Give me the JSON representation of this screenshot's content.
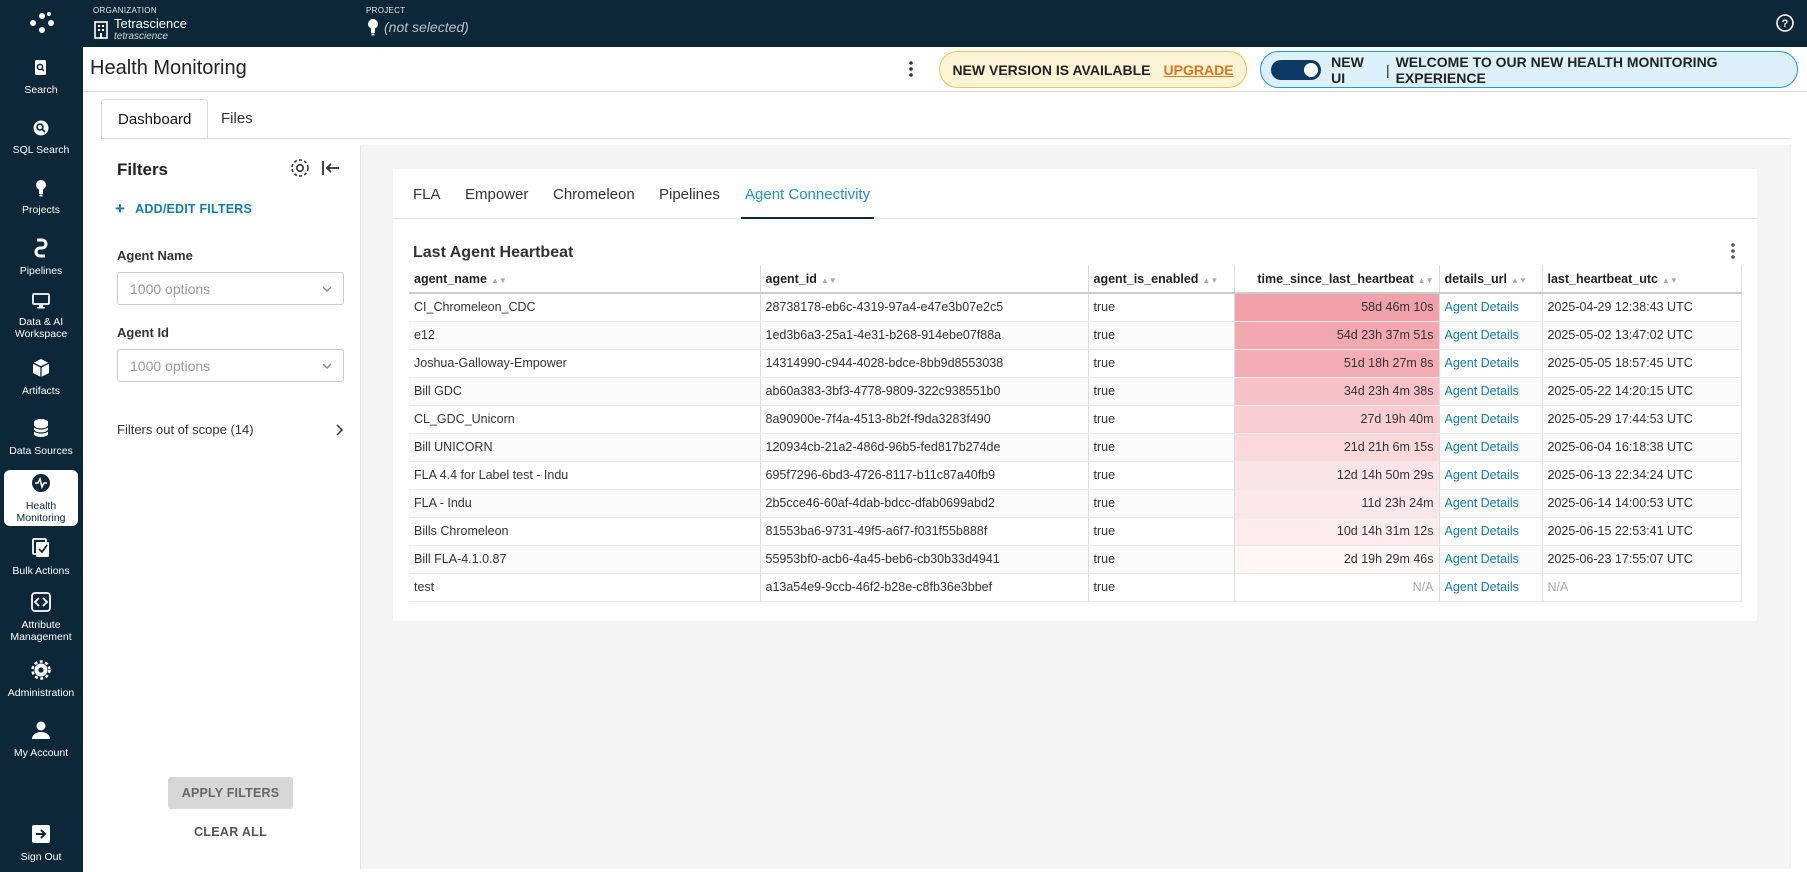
{
  "topbar": {
    "org_label": "ORGANIZATION",
    "org_name": "Tetrascience",
    "org_sub": "tetrascience",
    "project_label": "PROJECT",
    "project_value": "(not selected)"
  },
  "nav": {
    "items": [
      {
        "label": "Search",
        "icon": "search-file-icon"
      },
      {
        "label": "SQL Search",
        "icon": "magnifier-icon"
      },
      {
        "label": "Projects",
        "icon": "lightbulb-icon"
      },
      {
        "label": "Pipelines",
        "icon": "pipeline-icon"
      },
      {
        "label": "Data & AI Workspace",
        "icon": "monitor-icon"
      },
      {
        "label": "Artifacts",
        "icon": "cube-icon"
      },
      {
        "label": "Data Sources",
        "icon": "database-icon"
      },
      {
        "label": "Health Monitoring",
        "icon": "health-icon"
      },
      {
        "label": "Bulk Actions",
        "icon": "bulk-actions-icon"
      },
      {
        "label": "Attribute Management",
        "icon": "code-icon"
      },
      {
        "label": "Administration",
        "icon": "gear-icon"
      },
      {
        "label": "My Account",
        "icon": "person-icon"
      },
      {
        "label": "Sign Out",
        "icon": "sign-out-icon"
      }
    ]
  },
  "page": {
    "title": "Health Monitoring",
    "upgrade_text": "NEW VERSION IS AVAILABLE",
    "upgrade_link": "UPGRADE",
    "newui_label": "NEW UI",
    "newui_separator": "|",
    "newui_text": "WELCOME TO OUR NEW HEALTH MONITORING EXPERIENCE"
  },
  "main_tabs": [
    "Dashboard",
    "Files"
  ],
  "filters": {
    "title": "Filters",
    "add_label": "ADD/EDIT FILTERS",
    "agent_name_label": "Agent Name",
    "agent_name_placeholder": "1000 options",
    "agent_id_label": "Agent Id",
    "agent_id_placeholder": "1000 options",
    "out_of_scope": "Filters out of scope (14)",
    "apply": "APPLY FILTERS",
    "clear": "CLEAR ALL"
  },
  "sub_tabs": [
    "FLA",
    "Empower",
    "Chromeleon",
    "Pipelines",
    "Agent Connectivity"
  ],
  "active_sub_tab": "Agent Connectivity",
  "card_title": "Last Agent Heartbeat",
  "table": {
    "columns": [
      "agent_name",
      "agent_id",
      "agent_is_enabled",
      "time_since_last_heartbeat",
      "details_url",
      "last_heartbeat_utc"
    ],
    "rows": [
      [
        "CI_Chromeleon_CDC",
        "28738178-eb6c-4319-97a4-e47e3b07e2c5",
        "true",
        "58d 46m 10s",
        "Agent Details",
        "2025-04-29 12:38:43 UTC"
      ],
      [
        "e12",
        "1ed3b6a3-25a1-4e31-b268-914ebe07f88a",
        "true",
        "54d 23h 37m 51s",
        "Agent Details",
        "2025-05-02 13:47:02 UTC"
      ],
      [
        "Joshua-Galloway-Empower",
        "14314990-c944-4028-bdce-8bb9d8553038",
        "true",
        "51d 18h 27m 8s",
        "Agent Details",
        "2025-05-05 18:57:45 UTC"
      ],
      [
        "Bill GDC",
        "ab60a383-3bf3-4778-9809-322c938551b0",
        "true",
        "34d 23h 4m 38s",
        "Agent Details",
        "2025-05-22 14:20:15 UTC"
      ],
      [
        "CL_GDC_Unicorn",
        "8a90900e-7f4a-4513-8b2f-f9da3283f490",
        "true",
        "27d 19h 40m",
        "Agent Details",
        "2025-05-29 17:44:53 UTC"
      ],
      [
        "Bill UNICORN",
        "120934cb-21a2-486d-96b5-fed817b274de",
        "true",
        "21d 21h 6m 15s",
        "Agent Details",
        "2025-06-04 16:18:38 UTC"
      ],
      [
        "FLA 4.4 for Label test - Indu",
        "695f7296-6bd3-4726-8117-b11c87a40fb9",
        "true",
        "12d 14h 50m 29s",
        "Agent Details",
        "2025-06-13 22:34:24 UTC"
      ],
      [
        "FLA - Indu",
        "2b5cce46-60af-4dab-bdcc-dfab0699abd2",
        "true",
        "11d 23h 24m",
        "Agent Details",
        "2025-06-14 14:00:53 UTC"
      ],
      [
        "Bills Chromeleon",
        "81553ba6-9731-49f5-a6f7-f031f55b888f",
        "true",
        "10d 14h 31m 12s",
        "Agent Details",
        "2025-06-15 22:53:41 UTC"
      ],
      [
        "Bill FLA-4.1.0.87",
        "55953bf0-acb6-4a45-beb6-cb30b33d4941",
        "true",
        "2d 19h 29m 46s",
        "Agent Details",
        "2025-06-23 17:55:07 UTC"
      ],
      [
        "test",
        "a13a54e9-9ccb-46f2-b28e-c8fb36e3bbef",
        "true",
        "N/A",
        "Agent Details",
        "N/A"
      ]
    ],
    "heat_colors": [
      "#f2a1aa",
      "#f3a7af",
      "#f4adb5",
      "#f7c2c8",
      "#f9ced3",
      "#fad8dc",
      "#fce5e8",
      "#fce7ea",
      "#fdebee",
      "#fef6f7",
      "#ffffff"
    ]
  },
  "colors": {
    "nav_bg": "#0c2738",
    "accent": "#1d94c4",
    "upgrade": "#e0761c"
  }
}
